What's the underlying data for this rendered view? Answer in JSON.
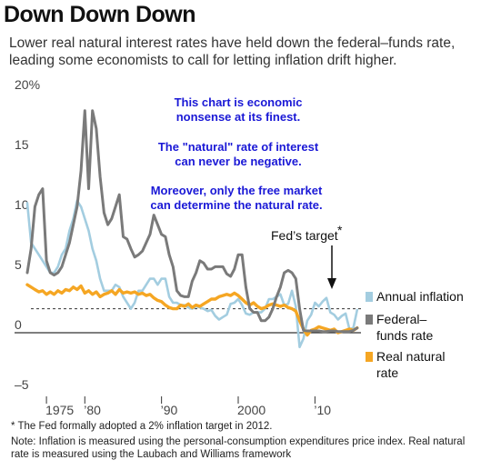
{
  "header": {
    "title": "Down Down Down",
    "subtitle": "Lower real natural interest rates have held down the federal–funds rate, leading some economists to call for letting inflation drift higher."
  },
  "annotation": {
    "lines": [
      "This chart is economic",
      "nonsense at its finest.",
      "The \"natural\" rate of interest",
      "can never be negative.",
      "Moreover, only the free market",
      "can determine the natural rate."
    ],
    "color": "#1a18d6"
  },
  "target_label": "Fed’s target",
  "target_marker": "*",
  "footnotes": {
    "asterisk": "* The Fed formally adopted a 2% inflation target in 2012.",
    "note": "Note: Inflation is measured using the personal-consumption expenditures price index. Real natural rate is measured using the Laubach and Williams framework"
  },
  "colors": {
    "inflation": "#a3cde0",
    "fedfunds": "#7a7a7a",
    "natural": "#f5a623",
    "zero_line": "#333333",
    "target_line": "#333333"
  },
  "chart_data": {
    "type": "line",
    "ylim": [
      -5,
      20
    ],
    "xlim": [
      1972.5,
      2016
    ],
    "y_ticks": [
      20,
      15,
      10,
      5,
      0,
      -5
    ],
    "y_tick_labels": [
      "20%",
      "15",
      "10",
      "5",
      "0",
      "–5"
    ],
    "x_ticks": [
      1975,
      1980,
      1990,
      2000,
      2010
    ],
    "x_tick_labels": [
      "1975",
      "’80",
      "’90",
      "2000",
      "’10"
    ],
    "target_value": 2,
    "grid": false,
    "legend_position": "right",
    "series": [
      {
        "name": "Annual inflation",
        "color_key": "inflation",
        "x": [
          1972.5,
          1973,
          1973.5,
          1974,
          1974.5,
          1975,
          1975.5,
          1976,
          1976.5,
          1977,
          1977.5,
          1978,
          1978.5,
          1979,
          1979.5,
          1980,
          1980.5,
          1981,
          1981.5,
          1982,
          1982.5,
          1983,
          1983.5,
          1984,
          1984.5,
          1985,
          1985.5,
          1986,
          1986.5,
          1987,
          1987.5,
          1988,
          1988.5,
          1989,
          1989.5,
          1990,
          1990.5,
          1991,
          1991.5,
          1992,
          1992.5,
          1993,
          1993.5,
          1994,
          1994.5,
          1995,
          1995.5,
          1996,
          1996.5,
          1997,
          1997.5,
          1998,
          1998.5,
          1999,
          1999.5,
          2000,
          2000.5,
          2001,
          2001.5,
          2002,
          2002.5,
          2003,
          2003.5,
          2004,
          2004.5,
          2005,
          2005.5,
          2006,
          2006.5,
          2007,
          2007.5,
          2008,
          2008.5,
          2009,
          2009.5,
          2010,
          2010.5,
          2011,
          2011.5,
          2012,
          2012.5,
          2013,
          2013.5,
          2014,
          2014.5,
          2015,
          2015.5
        ],
        "values": [
          10.8,
          7.5,
          7.0,
          6.5,
          6.0,
          5.5,
          5.0,
          5.0,
          5.5,
          6.5,
          7.0,
          8.5,
          9.5,
          11.0,
          10.5,
          9.5,
          8.5,
          7.0,
          6.0,
          4.5,
          3.5,
          3.5,
          3.5,
          4.0,
          3.8,
          3.0,
          2.5,
          2.0,
          2.5,
          3.5,
          3.5,
          4.0,
          4.5,
          4.5,
          4.0,
          4.5,
          4.5,
          3.0,
          2.5,
          2.5,
          2.3,
          2.3,
          2.1,
          2.0,
          2.2,
          2.1,
          2.0,
          1.8,
          1.9,
          1.4,
          1.1,
          1.3,
          1.5,
          2.4,
          2.5,
          2.8,
          2.3,
          1.6,
          1.5,
          1.7,
          1.7,
          1.7,
          2.0,
          2.8,
          2.8,
          3.0,
          3.2,
          2.3,
          2.4,
          3.5,
          2.2,
          -1.2,
          -0.5,
          1.0,
          1.5,
          2.5,
          2.2,
          2.6,
          2.9,
          1.7,
          1.5,
          1.1,
          1.4,
          1.6,
          0.3,
          0.4,
          1.9
        ]
      },
      {
        "name": "Federal–funds rate",
        "color_key": "fedfunds",
        "x": [
          1972.5,
          1973,
          1973.5,
          1974,
          1974.5,
          1975,
          1975.5,
          1976,
          1976.5,
          1977,
          1977.5,
          1978,
          1978.5,
          1979,
          1979.5,
          1980,
          1980.5,
          1981,
          1981.5,
          1982,
          1982.5,
          1983,
          1983.5,
          1984,
          1984.5,
          1985,
          1985.5,
          1986,
          1986.5,
          1987,
          1987.5,
          1988,
          1988.5,
          1989,
          1989.5,
          1990,
          1990.5,
          1991,
          1991.5,
          1992,
          1992.5,
          1993,
          1993.5,
          1994,
          1994.5,
          1995,
          1995.5,
          1996,
          1996.5,
          1997,
          1997.5,
          1998,
          1998.5,
          1999,
          1999.5,
          2000,
          2000.5,
          2001,
          2001.5,
          2002,
          2002.5,
          2003,
          2003.5,
          2004,
          2004.5,
          2005,
          2005.5,
          2006,
          2006.5,
          2007,
          2007.5,
          2008,
          2008.5,
          2009,
          2009.5,
          2010,
          2010.5,
          2011,
          2011.5,
          2012,
          2012.5,
          2013,
          2013.5,
          2014,
          2014.5,
          2015,
          2015.5
        ],
        "values": [
          5.0,
          7.0,
          10.5,
          11.5,
          12.0,
          6.0,
          5.0,
          4.8,
          5.0,
          5.5,
          6.5,
          7.5,
          9.0,
          10.5,
          13.5,
          18.5,
          12.0,
          18.5,
          17.0,
          13.0,
          10.0,
          9.0,
          9.5,
          10.5,
          11.5,
          8.0,
          7.8,
          7.0,
          6.3,
          6.5,
          6.8,
          7.5,
          8.2,
          9.8,
          9.0,
          8.2,
          8.0,
          6.5,
          5.5,
          3.5,
          3.1,
          3.0,
          3.0,
          4.3,
          5.0,
          6.0,
          5.8,
          5.3,
          5.3,
          5.5,
          5.5,
          5.5,
          4.9,
          4.7,
          5.3,
          6.5,
          6.5,
          3.8,
          2.0,
          1.7,
          1.7,
          1.0,
          1.0,
          1.3,
          2.0,
          3.0,
          3.8,
          5.0,
          5.2,
          5.0,
          4.5,
          2.0,
          0.2,
          0.15,
          0.15,
          0.15,
          0.15,
          0.1,
          0.1,
          0.15,
          0.15,
          0.1,
          0.1,
          0.1,
          0.1,
          0.2,
          0.4
        ]
      },
      {
        "name": "Real natural rate",
        "color_key": "natural",
        "x": [
          1972.5,
          1973,
          1973.5,
          1974,
          1974.5,
          1975,
          1975.5,
          1976,
          1976.5,
          1977,
          1977.5,
          1978,
          1978.5,
          1979,
          1979.5,
          1980,
          1980.5,
          1981,
          1981.5,
          1982,
          1982.5,
          1983,
          1983.5,
          1984,
          1984.5,
          1985,
          1985.5,
          1986,
          1986.5,
          1987,
          1987.5,
          1988,
          1988.5,
          1989,
          1989.5,
          1990,
          1990.5,
          1991,
          1991.5,
          1992,
          1992.5,
          1993,
          1993.5,
          1994,
          1994.5,
          1995,
          1995.5,
          1996,
          1996.5,
          1997,
          1997.5,
          1998,
          1998.5,
          1999,
          1999.5,
          2000,
          2000.5,
          2001,
          2001.5,
          2002,
          2002.5,
          2003,
          2003.5,
          2004,
          2004.5,
          2005,
          2005.5,
          2006,
          2006.5,
          2007,
          2007.5,
          2008,
          2008.5,
          2009,
          2009.5,
          2010,
          2010.5,
          2011,
          2011.5,
          2012,
          2012.5,
          2013,
          2013.5,
          2014,
          2014.5,
          2015,
          2015.5
        ],
        "values": [
          4.0,
          3.8,
          3.6,
          3.4,
          3.5,
          3.2,
          3.4,
          3.2,
          3.5,
          3.3,
          3.6,
          3.5,
          3.8,
          3.6,
          3.9,
          3.3,
          3.5,
          3.2,
          3.4,
          3.0,
          3.2,
          3.3,
          3.5,
          3.2,
          3.6,
          3.3,
          3.4,
          3.3,
          3.4,
          3.2,
          3.3,
          3.1,
          3.2,
          2.9,
          2.7,
          2.6,
          2.3,
          2.1,
          2.0,
          2.0,
          2.3,
          2.2,
          2.4,
          2.1,
          2.3,
          2.2,
          2.4,
          2.6,
          2.8,
          2.8,
          3.0,
          3.1,
          3.2,
          3.1,
          3.3,
          3.1,
          2.8,
          2.5,
          2.3,
          2.5,
          2.2,
          2.0,
          2.1,
          2.3,
          2.4,
          2.3,
          2.2,
          2.3,
          2.1,
          2.0,
          1.8,
          1.0,
          0.3,
          -0.2,
          0.2,
          0.3,
          0.5,
          0.4,
          0.3,
          0.2,
          0.3,
          0.0,
          0.1,
          0.2,
          0.3,
          0.2,
          0.4
        ]
      }
    ]
  }
}
